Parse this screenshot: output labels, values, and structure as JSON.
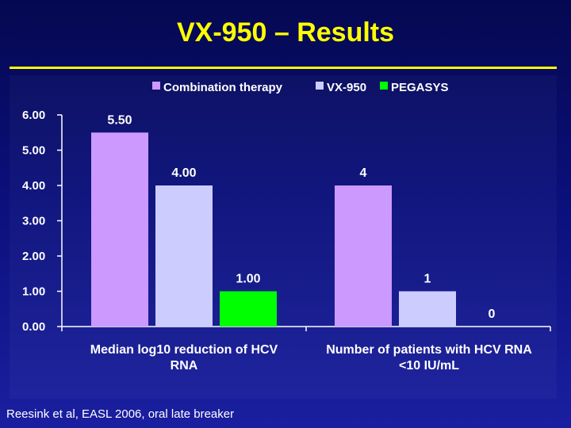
{
  "slide": {
    "title": "VX-950 – Results",
    "footnote": "Reesink et al, EASL 2006, oral late breaker"
  },
  "chart_data": {
    "type": "bar",
    "title": "",
    "xlabel": "",
    "ylabel": "",
    "ylim": [
      0,
      6
    ],
    "yticks": [
      "0.00",
      "1.00",
      "2.00",
      "3.00",
      "4.00",
      "5.00",
      "6.00"
    ],
    "grid": false,
    "legend_position": "top",
    "categories": [
      [
        "Median log10 reduction of HCV",
        "RNA"
      ],
      [
        "Number of patients with HCV RNA",
        "<10 IU/mL"
      ]
    ],
    "series": [
      {
        "name": "Combination therapy",
        "color": "#cc99ff",
        "values": [
          5.5,
          4
        ],
        "labels": [
          "5.50",
          "4"
        ]
      },
      {
        "name": "VX-950",
        "color": "#ccccff",
        "values": [
          4.0,
          1
        ],
        "labels": [
          "4.00",
          "1"
        ]
      },
      {
        "name": "PEGASYS",
        "color": "#00ff00",
        "values": [
          1.0,
          0
        ],
        "labels": [
          "1.00",
          "0"
        ]
      }
    ]
  }
}
